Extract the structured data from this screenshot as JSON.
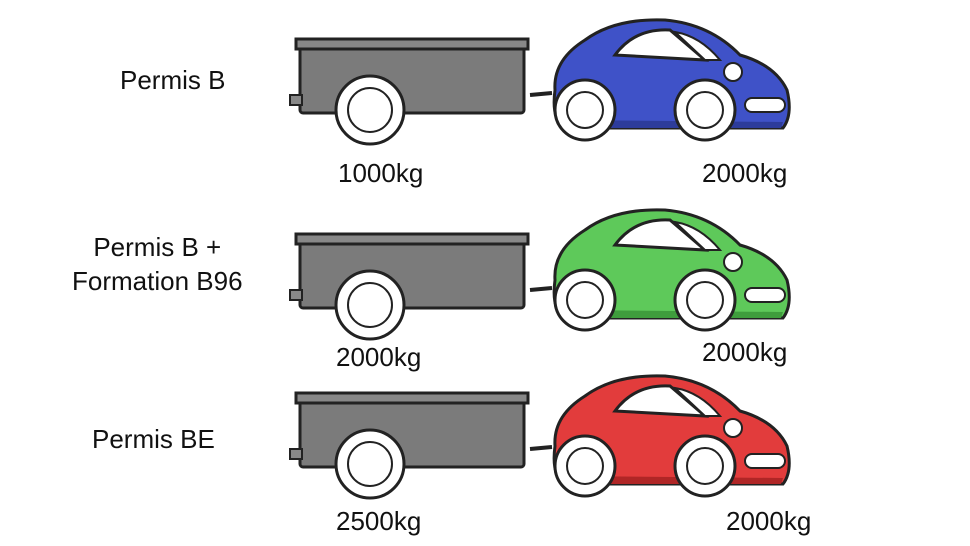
{
  "rows": [
    {
      "license": [
        "Permis B"
      ],
      "trailer_weight": "1000kg",
      "car_weight": "2000kg",
      "car_color": "#3f52c8",
      "car_shadow": "#2d3c9b"
    },
    {
      "license": [
        "Permis B +",
        "Formation B96"
      ],
      "trailer_weight": "2000kg",
      "car_weight": "2000kg",
      "car_color": "#5ec95a",
      "car_shadow": "#3f9d3d"
    },
    {
      "license": [
        "Permis BE"
      ],
      "trailer_weight": "2500kg",
      "car_weight": "2000kg",
      "car_color": "#e23c3c",
      "car_shadow": "#b02626"
    }
  ],
  "trailer_color": "#7b7b7b"
}
